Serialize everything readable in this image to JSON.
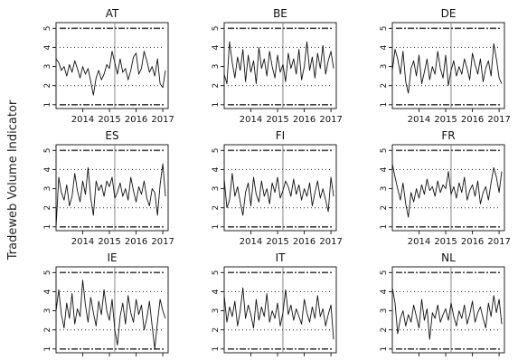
{
  "chart_data": {
    "type": "line",
    "ylabel": "Tradeweb Volume Indicator",
    "ylim": [
      0.8,
      5.3
    ],
    "xlim": [
      2013.0,
      2017.2
    ],
    "yticks": [
      1,
      2,
      3,
      4,
      5
    ],
    "xticks": [
      "2014",
      "2015",
      "2016",
      "2017"
    ],
    "xtick_values": [
      2014,
      2015,
      2016,
      2017
    ],
    "vline_x": 2015.2,
    "grid": false,
    "colors": {
      "series": "#111111",
      "band_upper": "#444444",
      "band_lower": "#444444",
      "vline": "#888888",
      "frame": "#222222"
    },
    "panels": [
      {
        "title": "AT",
        "x": [
          2013.0,
          2013.1,
          2013.2,
          2013.3,
          2013.4,
          2013.5,
          2013.6,
          2013.7,
          2013.8,
          2013.9,
          2014.0,
          2014.1,
          2014.2,
          2014.3,
          2014.4,
          2014.5,
          2014.6,
          2014.7,
          2014.8,
          2014.9,
          2015.0,
          2015.1,
          2015.2,
          2015.3,
          2015.4,
          2015.5,
          2015.6,
          2015.7,
          2015.8,
          2015.9,
          2016.0,
          2016.1,
          2016.2,
          2016.3,
          2016.4,
          2016.5,
          2016.6,
          2016.7,
          2016.8,
          2016.9,
          2017.0,
          2017.1
        ],
        "y": [
          3.4,
          3.2,
          2.8,
          3.0,
          2.5,
          3.1,
          2.7,
          3.3,
          2.9,
          2.4,
          3.0,
          2.6,
          2.9,
          2.2,
          1.5,
          2.4,
          2.8,
          2.3,
          2.6,
          3.1,
          2.9,
          3.8,
          3.2,
          2.6,
          3.4,
          2.7,
          2.9,
          2.3,
          2.8,
          3.5,
          3.7,
          2.6,
          2.9,
          3.8,
          3.3,
          2.7,
          3.0,
          2.5,
          3.4,
          2.1,
          1.9,
          2.8
        ],
        "upper_dotted": 4.0,
        "lower_dotted": 2.0,
        "upper_dashdot": 5.0,
        "lower_dashdot": 1.0
      },
      {
        "title": "BE",
        "x": [
          2013.0,
          2013.1,
          2013.2,
          2013.3,
          2013.4,
          2013.5,
          2013.6,
          2013.7,
          2013.8,
          2013.9,
          2014.0,
          2014.1,
          2014.2,
          2014.3,
          2014.4,
          2014.5,
          2014.6,
          2014.7,
          2014.8,
          2014.9,
          2015.0,
          2015.1,
          2015.2,
          2015.3,
          2015.4,
          2015.5,
          2015.6,
          2015.7,
          2015.8,
          2015.9,
          2016.0,
          2016.1,
          2016.2,
          2016.3,
          2016.4,
          2016.5,
          2016.6,
          2016.7,
          2016.8,
          2016.9,
          2017.0,
          2017.1
        ],
        "y": [
          2.6,
          2.1,
          4.3,
          3.2,
          2.4,
          3.5,
          2.8,
          3.9,
          2.2,
          3.6,
          2.7,
          3.3,
          2.1,
          4.0,
          2.9,
          3.4,
          2.5,
          3.8,
          3.0,
          2.4,
          3.6,
          2.7,
          3.1,
          2.2,
          3.7,
          2.9,
          3.4,
          2.6,
          3.9,
          2.3,
          3.0,
          4.3,
          2.8,
          3.5,
          2.4,
          3.7,
          2.9,
          4.1,
          2.6,
          3.3,
          3.8,
          2.9
        ],
        "upper_dotted": 4.0,
        "lower_dotted": 2.0,
        "upper_dashdot": 5.0,
        "lower_dashdot": 1.0
      },
      {
        "title": "DE",
        "x": [
          2013.0,
          2013.1,
          2013.2,
          2013.3,
          2013.4,
          2013.5,
          2013.6,
          2013.7,
          2013.8,
          2013.9,
          2014.0,
          2014.1,
          2014.2,
          2014.3,
          2014.4,
          2014.5,
          2014.6,
          2014.7,
          2014.8,
          2014.9,
          2015.0,
          2015.1,
          2015.2,
          2015.3,
          2015.4,
          2015.5,
          2015.6,
          2015.7,
          2015.8,
          2015.9,
          2016.0,
          2016.1,
          2016.2,
          2016.3,
          2016.4,
          2016.5,
          2016.6,
          2016.7,
          2016.8,
          2016.9,
          2017.0,
          2017.1
        ],
        "y": [
          2.8,
          3.9,
          3.4,
          2.6,
          3.8,
          2.2,
          1.6,
          2.9,
          3.3,
          2.5,
          3.6,
          2.1,
          2.7,
          3.4,
          2.3,
          3.0,
          2.6,
          3.8,
          2.9,
          2.4,
          3.6,
          2.0,
          2.8,
          3.3,
          2.5,
          3.0,
          2.6,
          3.4,
          2.9,
          2.3,
          3.7,
          3.1,
          2.6,
          3.4,
          2.2,
          2.9,
          3.3,
          2.5,
          4.2,
          3.4,
          2.4,
          2.1
        ],
        "upper_dotted": 4.0,
        "lower_dotted": 2.0,
        "upper_dashdot": 5.0,
        "lower_dashdot": 1.0
      },
      {
        "title": "ES",
        "x": [
          2013.0,
          2013.1,
          2013.2,
          2013.3,
          2013.4,
          2013.5,
          2013.6,
          2013.7,
          2013.8,
          2013.9,
          2014.0,
          2014.1,
          2014.2,
          2014.3,
          2014.4,
          2014.5,
          2014.6,
          2014.7,
          2014.8,
          2014.9,
          2015.0,
          2015.1,
          2015.2,
          2015.3,
          2015.4,
          2015.5,
          2015.6,
          2015.7,
          2015.8,
          2015.9,
          2016.0,
          2016.1,
          2016.2,
          2016.3,
          2016.4,
          2016.5,
          2016.6,
          2016.7,
          2016.8,
          2016.9,
          2017.0,
          2017.1
        ],
        "y": [
          1.0,
          3.6,
          2.8,
          2.4,
          3.2,
          2.1,
          2.6,
          3.8,
          2.9,
          2.3,
          3.4,
          2.7,
          4.1,
          2.5,
          1.6,
          3.4,
          2.9,
          3.2,
          2.6,
          3.4,
          3.1,
          3.6,
          2.5,
          2.8,
          3.3,
          2.6,
          3.0,
          2.4,
          3.6,
          2.9,
          2.3,
          3.1,
          2.7,
          3.4,
          2.5,
          2.1,
          3.0,
          2.8,
          1.6,
          3.2,
          4.3,
          2.6
        ],
        "upper_dotted": 4.0,
        "lower_dotted": 2.0,
        "upper_dashdot": 5.0,
        "lower_dashdot": 1.0
      },
      {
        "title": "FI",
        "x": [
          2013.0,
          2013.1,
          2013.2,
          2013.3,
          2013.4,
          2013.5,
          2013.6,
          2013.7,
          2013.8,
          2013.9,
          2014.0,
          2014.1,
          2014.2,
          2014.3,
          2014.4,
          2014.5,
          2014.6,
          2014.7,
          2014.8,
          2014.9,
          2015.0,
          2015.1,
          2015.2,
          2015.3,
          2015.4,
          2015.5,
          2015.6,
          2015.7,
          2015.8,
          2015.9,
          2016.0,
          2016.1,
          2016.2,
          2016.3,
          2016.4,
          2016.5,
          2016.6,
          2016.7,
          2016.8,
          2016.9,
          2017.0,
          2017.1
        ],
        "y": [
          3.5,
          2.0,
          2.4,
          3.8,
          2.6,
          3.1,
          2.3,
          1.6,
          2.8,
          3.3,
          2.1,
          3.6,
          2.7,
          2.3,
          3.4,
          2.6,
          3.0,
          2.2,
          3.3,
          2.8,
          3.6,
          2.5,
          2.9,
          3.4,
          3.1,
          2.6,
          3.5,
          2.7,
          3.2,
          2.4,
          3.0,
          2.6,
          3.3,
          2.1,
          2.8,
          3.4,
          2.5,
          3.0,
          2.4,
          1.8,
          3.6,
          2.6
        ],
        "upper_dotted": 4.0,
        "lower_dotted": 2.0,
        "upper_dashdot": 5.0,
        "lower_dashdot": 1.0
      },
      {
        "title": "FR",
        "x": [
          2013.0,
          2013.1,
          2013.2,
          2013.3,
          2013.4,
          2013.5,
          2013.6,
          2013.7,
          2013.8,
          2013.9,
          2014.0,
          2014.1,
          2014.2,
          2014.3,
          2014.4,
          2014.5,
          2014.6,
          2014.7,
          2014.8,
          2014.9,
          2015.0,
          2015.1,
          2015.2,
          2015.3,
          2015.4,
          2015.5,
          2015.6,
          2015.7,
          2015.8,
          2015.9,
          2016.0,
          2016.1,
          2016.2,
          2016.3,
          2016.4,
          2016.5,
          2016.6,
          2016.7,
          2016.8,
          2016.9,
          2017.0,
          2017.1
        ],
        "y": [
          4.3,
          3.6,
          3.0,
          2.4,
          3.3,
          2.2,
          1.5,
          2.8,
          2.3,
          3.0,
          2.5,
          3.2,
          2.7,
          3.5,
          2.9,
          3.1,
          2.6,
          3.4,
          2.8,
          3.2,
          3.0,
          3.9,
          2.7,
          3.1,
          2.5,
          3.3,
          2.8,
          3.6,
          2.4,
          2.9,
          3.2,
          2.6,
          3.4,
          2.2,
          2.8,
          3.1,
          2.4,
          3.3,
          4.1,
          3.6,
          2.8,
          3.9
        ],
        "upper_dotted": 4.0,
        "lower_dotted": 2.0,
        "upper_dashdot": 5.0,
        "lower_dashdot": 1.0
      },
      {
        "title": "IE",
        "x": [
          2013.0,
          2013.1,
          2013.2,
          2013.3,
          2013.4,
          2013.5,
          2013.6,
          2013.7,
          2013.8,
          2013.9,
          2014.0,
          2014.1,
          2014.2,
          2014.3,
          2014.4,
          2014.5,
          2014.6,
          2014.7,
          2014.8,
          2014.9,
          2015.0,
          2015.1,
          2015.2,
          2015.3,
          2015.4,
          2015.5,
          2015.6,
          2015.7,
          2015.8,
          2015.9,
          2016.0,
          2016.1,
          2016.2,
          2016.3,
          2016.4,
          2016.5,
          2016.6,
          2016.7,
          2016.8,
          2016.9,
          2017.0,
          2017.1
        ],
        "y": [
          3.0,
          4.1,
          2.8,
          2.1,
          3.4,
          2.6,
          3.9,
          2.3,
          3.1,
          2.7,
          4.6,
          3.3,
          2.4,
          3.7,
          2.9,
          2.2,
          3.5,
          2.8,
          4.1,
          3.0,
          2.5,
          3.6,
          2.0,
          1.2,
          2.7,
          3.4,
          2.3,
          3.8,
          2.9,
          2.4,
          3.6,
          2.8,
          3.3,
          2.0,
          2.6,
          3.5,
          2.2,
          1.0,
          2.4,
          3.6,
          3.0,
          2.6
        ],
        "upper_dotted": 4.0,
        "lower_dotted": 2.0,
        "upper_dashdot": 5.0,
        "lower_dashdot": 1.0
      },
      {
        "title": "IT",
        "x": [
          2013.0,
          2013.1,
          2013.2,
          2013.3,
          2013.4,
          2013.5,
          2013.6,
          2013.7,
          2013.8,
          2013.9,
          2014.0,
          2014.1,
          2014.2,
          2014.3,
          2014.4,
          2014.5,
          2014.6,
          2014.7,
          2014.8,
          2014.9,
          2015.0,
          2015.1,
          2015.2,
          2015.3,
          2015.4,
          2015.5,
          2015.6,
          2015.7,
          2015.8,
          2015.9,
          2016.0,
          2016.1,
          2016.2,
          2016.3,
          2016.4,
          2016.5,
          2016.6,
          2016.7,
          2016.8,
          2016.9,
          2017.0,
          2017.1
        ],
        "y": [
          3.8,
          2.4,
          3.2,
          2.7,
          3.5,
          2.2,
          3.0,
          4.2,
          2.6,
          3.3,
          2.8,
          2.1,
          3.6,
          2.5,
          3.2,
          2.7,
          3.9,
          2.4,
          3.0,
          2.6,
          3.4,
          2.2,
          2.9,
          4.1,
          2.8,
          3.3,
          2.5,
          3.1,
          2.7,
          2.3,
          3.6,
          2.9,
          2.4,
          3.2,
          2.6,
          3.8,
          2.7,
          3.1,
          2.2,
          2.8,
          3.3,
          1.5
        ],
        "upper_dotted": 4.0,
        "lower_dotted": 2.0,
        "upper_dashdot": 5.0,
        "lower_dashdot": 1.0
      },
      {
        "title": "NL",
        "x": [
          2013.0,
          2013.1,
          2013.2,
          2013.3,
          2013.4,
          2013.5,
          2013.6,
          2013.7,
          2013.8,
          2013.9,
          2014.0,
          2014.1,
          2014.2,
          2014.3,
          2014.4,
          2014.5,
          2014.6,
          2014.7,
          2014.8,
          2014.9,
          2015.0,
          2015.1,
          2015.2,
          2015.3,
          2015.4,
          2015.5,
          2015.6,
          2015.7,
          2015.8,
          2015.9,
          2016.0,
          2016.1,
          2016.2,
          2016.3,
          2016.4,
          2016.5,
          2016.6,
          2016.7,
          2016.8,
          2016.9,
          2017.0,
          2017.1
        ],
        "y": [
          4.2,
          3.4,
          1.8,
          2.6,
          3.0,
          2.2,
          2.8,
          2.4,
          3.3,
          2.7,
          2.1,
          3.6,
          2.5,
          3.1,
          1.5,
          2.9,
          2.6,
          3.3,
          2.4,
          2.8,
          3.1,
          2.5,
          3.4,
          2.7,
          2.2,
          3.0,
          2.6,
          3.3,
          2.3,
          2.8,
          3.5,
          2.4,
          2.9,
          3.2,
          2.6,
          2.1,
          3.4,
          2.7,
          3.8,
          2.9,
          3.6,
          2.3
        ],
        "upper_dotted": 4.0,
        "lower_dotted": 2.0,
        "upper_dashdot": 5.0,
        "lower_dashdot": 1.0
      }
    ]
  }
}
